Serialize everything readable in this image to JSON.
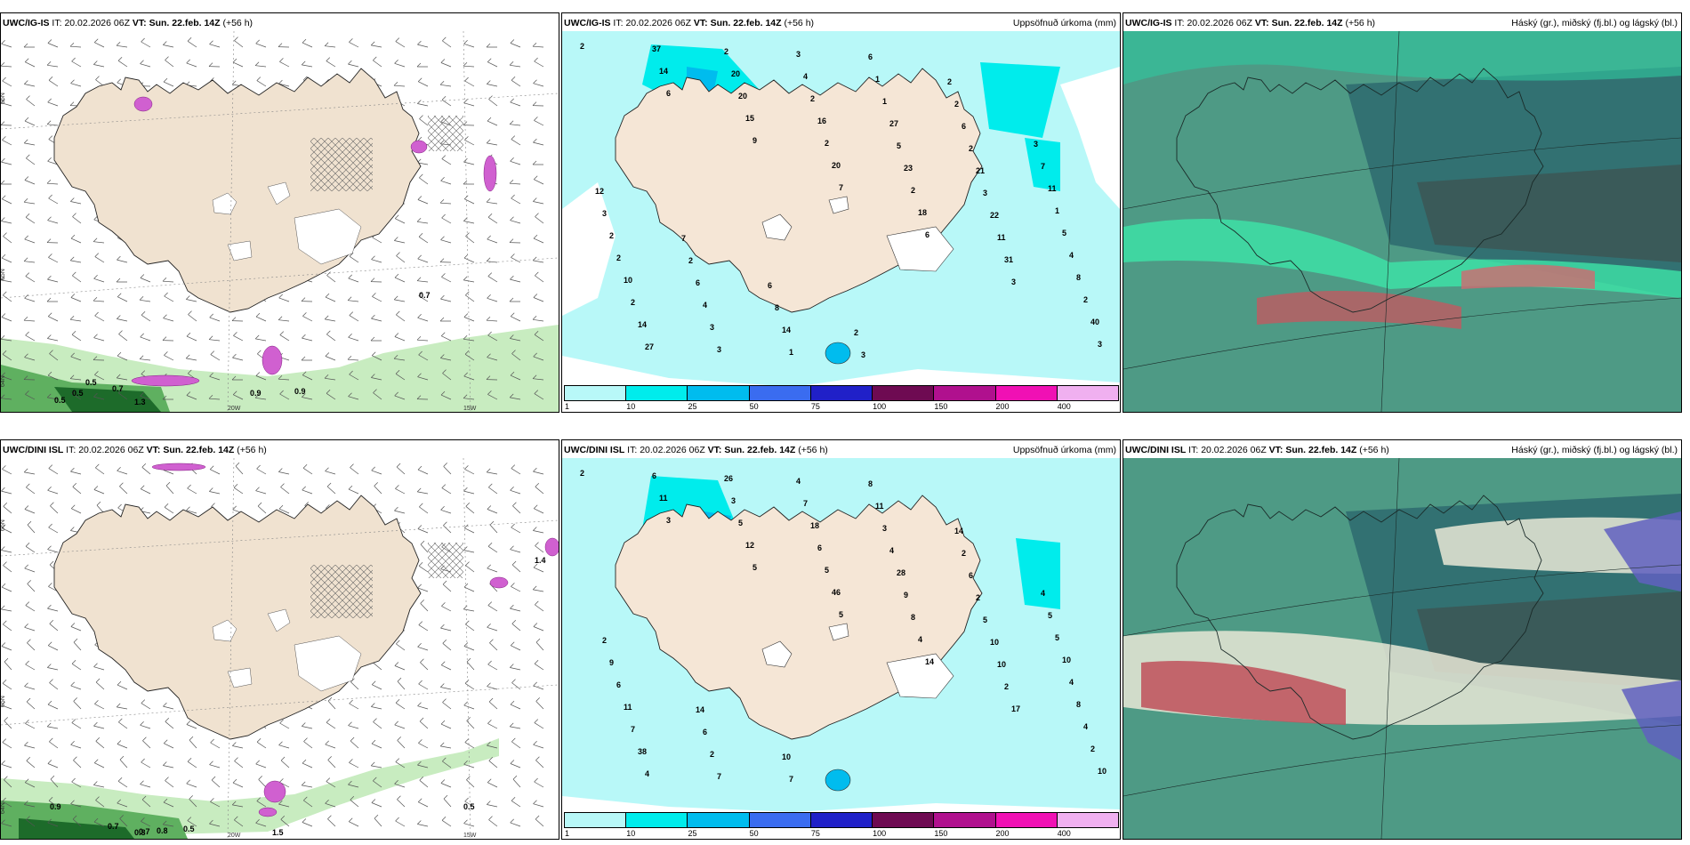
{
  "it_label": "IT:",
  "vt_label": "VT:",
  "init_time": "20.02.2026 06Z",
  "valid_time": "Sun. 22.feb. 14Z",
  "lead": "(+56 h)",
  "rows": [
    {
      "model": "UWC/IG-IS",
      "panels": [
        {
          "kind": "wind",
          "right_title": "",
          "lat_labels": [
            "66N",
            "65N",
            "64N"
          ],
          "lon_labels": [
            "20W",
            "15W"
          ],
          "values": [
            "0.7",
            "0.5",
            "0.5",
            "0.5",
            "1.3",
            "0.9",
            "0.9",
            "0.7"
          ]
        },
        {
          "kind": "precip",
          "right_title": "Uppsöfnuð úrkoma (mm)",
          "values": [
            "2",
            "6",
            "9",
            "7",
            "6",
            "3",
            "3",
            "14",
            "15",
            "20",
            "18",
            "31",
            "40",
            "37",
            "20",
            "2",
            "2",
            "11",
            "2",
            "27",
            "20",
            "16",
            "23",
            "22",
            "8",
            "14",
            "2",
            "2",
            "5",
            "3",
            "4",
            "2",
            "3",
            "4",
            "27",
            "21",
            "5",
            "10",
            "3",
            "3",
            "1",
            "2",
            "1",
            "2",
            "4",
            "1",
            "1",
            "6",
            "11",
            "2",
            "6",
            "14",
            "6",
            "2",
            "7",
            "3",
            "2",
            "8",
            "3",
            "2",
            "3",
            "12",
            "7",
            "6",
            "2"
          ]
        },
        {
          "kind": "cloud",
          "right_title": "Háský (gr.), miðský (fj.bl.) og lágský (bl.)"
        }
      ]
    },
    {
      "model": "UWC/DINI ISL",
      "panels": [
        {
          "kind": "wind",
          "right_title": "",
          "lat_labels": [
            "66N",
            "65N",
            "64N"
          ],
          "lon_labels": [
            "20W",
            "15W"
          ],
          "values": [
            "0.9",
            "0.7",
            "0.7",
            "0.8",
            "0.8",
            "0.5",
            "1.4",
            "0.5",
            "1.5"
          ]
        },
        {
          "kind": "precip",
          "right_title": "Uppsöfnuð úrkoma (mm)",
          "values": [
            "2",
            "3",
            "5",
            "5",
            "14",
            "17",
            "10",
            "11",
            "12",
            "46",
            "4",
            "2",
            "2",
            "6",
            "5",
            "5",
            "8",
            "10",
            "4",
            "4",
            "3",
            "6",
            "9",
            "10",
            "8",
            "38",
            "26",
            "18",
            "28",
            "5",
            "4",
            "7",
            "7",
            "7",
            "4",
            "2",
            "10",
            "11",
            "2",
            "4",
            "3",
            "6",
            "5",
            "6",
            "6",
            "7",
            "11",
            "2",
            "5",
            "9",
            "14",
            "10",
            "8",
            "14",
            "4",
            "2"
          ]
        },
        {
          "kind": "cloud",
          "right_title": "Háský (gr.), miðský (fj.bl.) og lágský (bl.)"
        }
      ]
    }
  ],
  "colorbar": {
    "ticks": [
      "1",
      "10",
      "25",
      "50",
      "75",
      "100",
      "150",
      "200",
      "400"
    ],
    "colors": [
      "#b8f8f8",
      "#00ecec",
      "#00bcee",
      "#3a6cf0",
      "#2020c8",
      "#6e0a52",
      "#b0108e",
      "#f010b4",
      "#f0b0f0"
    ]
  }
}
